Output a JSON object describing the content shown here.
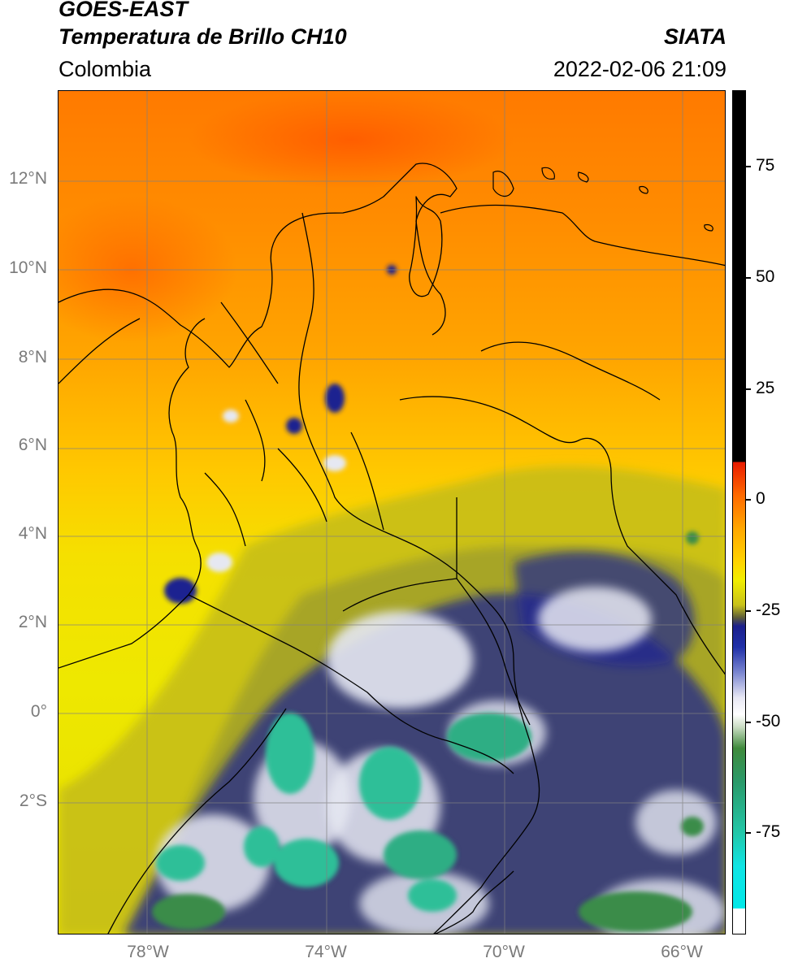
{
  "header": {
    "title_line1": "GOES-EAST",
    "title_line2": "Temperatura de Brillo CH10",
    "organization": "SIATA",
    "region": "Colombia",
    "timestamp": "2022-02-06 21:09"
  },
  "axes": {
    "lat_ticks": [
      "12°N",
      "10°N",
      "8°N",
      "6°N",
      "4°N",
      "2°N",
      "0°",
      "2°S"
    ],
    "lon_ticks": [
      "78°W",
      "74°W",
      "70°W",
      "66°W"
    ]
  },
  "colorbar": {
    "tick_labels": [
      "75",
      "50",
      "25",
      "0",
      "-25",
      "-50",
      "-75"
    ],
    "colors": {
      "warm_top": "#000000",
      "hot": "#e81a00",
      "orange": "#ff8c00",
      "yellow": "#f2ee00",
      "navy": "#1b1f8c",
      "white": "#ffffff",
      "green": "#3f8a3c",
      "cyan": "#10e4e4"
    }
  },
  "map_colors": {
    "sea_orange": "#ff8a00",
    "land_yellow": "#f0e400",
    "olive": "#b8b41c",
    "deep_cloud": "#1d2490",
    "cloud_white": "#e6e8f2",
    "cloud_top": "#2fbf98",
    "cloud_top_dark": "#3a8c4a",
    "grid": "#808080"
  }
}
